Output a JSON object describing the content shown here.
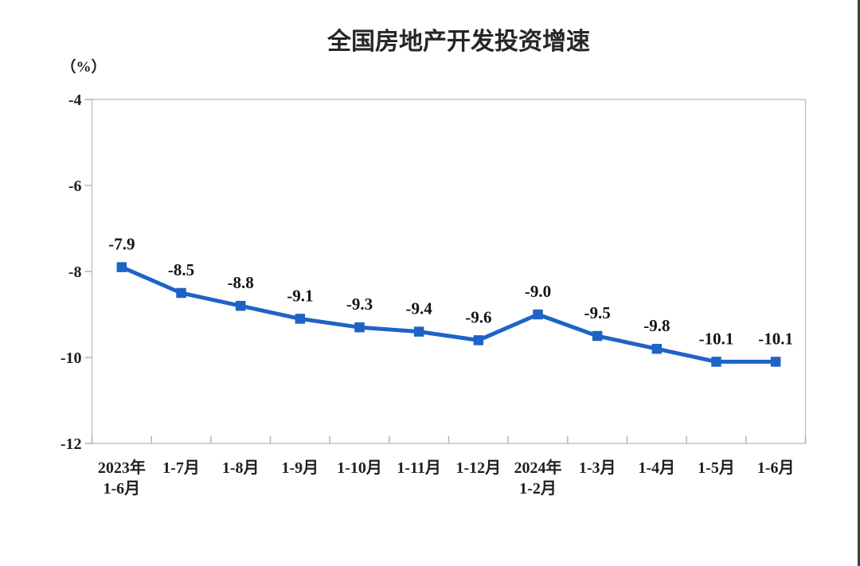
{
  "page": {
    "background": "#ffffff"
  },
  "chart_data": {
    "type": "line",
    "title": "全国房地产开发投资增速",
    "unit_label": "（%）",
    "categories": [
      "2023年\n1-6月",
      "1-7月",
      "1-8月",
      "1-9月",
      "1-10月",
      "1-11月",
      "1-12月",
      "2024年\n1-2月",
      "1-3月",
      "1-4月",
      "1-5月",
      "1-6月"
    ],
    "values": [
      -7.9,
      -8.5,
      -8.8,
      -9.1,
      -9.3,
      -9.4,
      -9.6,
      -9.0,
      -9.5,
      -9.8,
      -10.1,
      -10.1
    ],
    "labels": [
      "-7.9",
      "-8.5",
      "-8.8",
      "-9.1",
      "-9.3",
      "-9.4",
      "-9.6",
      "-9.0",
      "-9.5",
      "-9.8",
      "-10.1",
      "-10.1"
    ],
    "ylim": [
      -12,
      -4
    ],
    "yticks": [
      -4,
      -6,
      -8,
      -10,
      -12
    ],
    "grid": false,
    "legend": "none",
    "colors": {
      "series": "#1e63c6",
      "plot_border": "#c3c3c3",
      "tick": "#b3b3b3",
      "text": "#1f1f1f",
      "title": "#262626"
    }
  }
}
